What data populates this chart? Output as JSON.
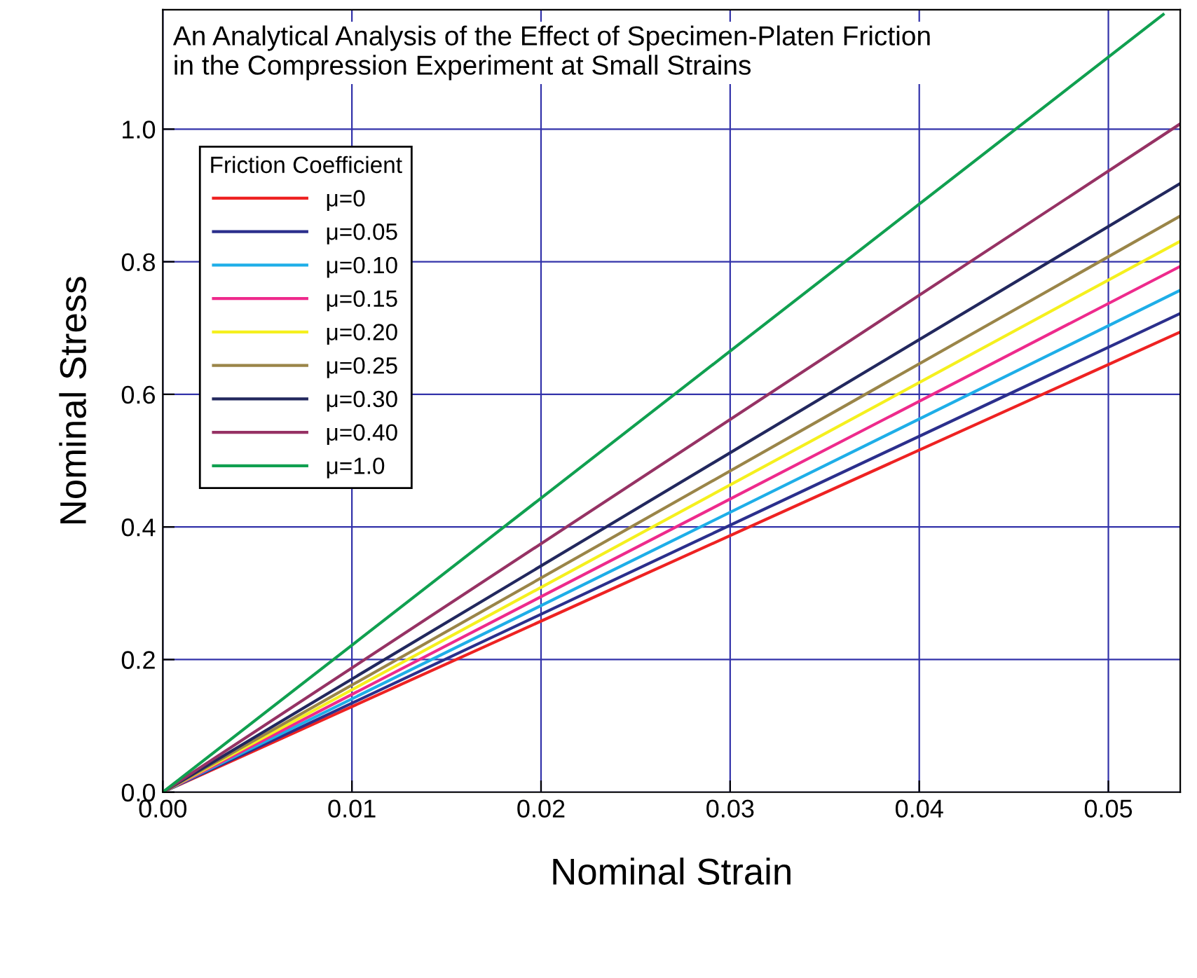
{
  "chart_data": {
    "type": "line",
    "title": "An Analytical Analysis of the Effect of Specimen-Platen Friction\nin the Compression Experiment at Small Strains",
    "xlabel": "Nominal Strain",
    "ylabel": "Nominal Stress",
    "legend_title": "Friction Coefficient",
    "x": [
      0,
      0.0538
    ],
    "series": [
      {
        "name": "μ=0",
        "color": "#ee2222",
        "values": [
          0,
          0.694
        ]
      },
      {
        "name": "μ=0.05",
        "color": "#2b2f8c",
        "values": [
          0,
          0.722
        ]
      },
      {
        "name": "μ=0.10",
        "color": "#1eaee8",
        "values": [
          0,
          0.757
        ]
      },
      {
        "name": "μ=0.15",
        "color": "#ee2a8c",
        "values": [
          0,
          0.793
        ]
      },
      {
        "name": "μ=0.20",
        "color": "#f5f01e",
        "values": [
          0,
          0.831
        ]
      },
      {
        "name": "μ=0.25",
        "color": "#9a8548",
        "values": [
          0,
          0.869
        ]
      },
      {
        "name": "μ=0.30",
        "color": "#22285e",
        "values": [
          0,
          0.918
        ]
      },
      {
        "name": "μ=0.40",
        "color": "#963264",
        "values": [
          0,
          1.008
        ]
      },
      {
        "name": "μ=1.0",
        "color": "#10a050",
        "x": [
          0,
          0.0529
        ],
        "values": [
          0,
          1.173
        ]
      }
    ],
    "xlim": [
      0,
      0.0538
    ],
    "ylim": [
      0,
      1.18
    ],
    "xticks": [
      {
        "value": 0,
        "label": "0.00"
      },
      0.01,
      0.02,
      0.03,
      0.04,
      0.05
    ],
    "yticks": [
      {
        "value": 0,
        "label": "0.0"
      },
      0.2,
      0.4,
      0.6,
      0.8,
      {
        "value": 1.0,
        "label": "1.0"
      }
    ],
    "grid": true,
    "legend": "top left",
    "marker": "none",
    "line_style": "solid"
  }
}
